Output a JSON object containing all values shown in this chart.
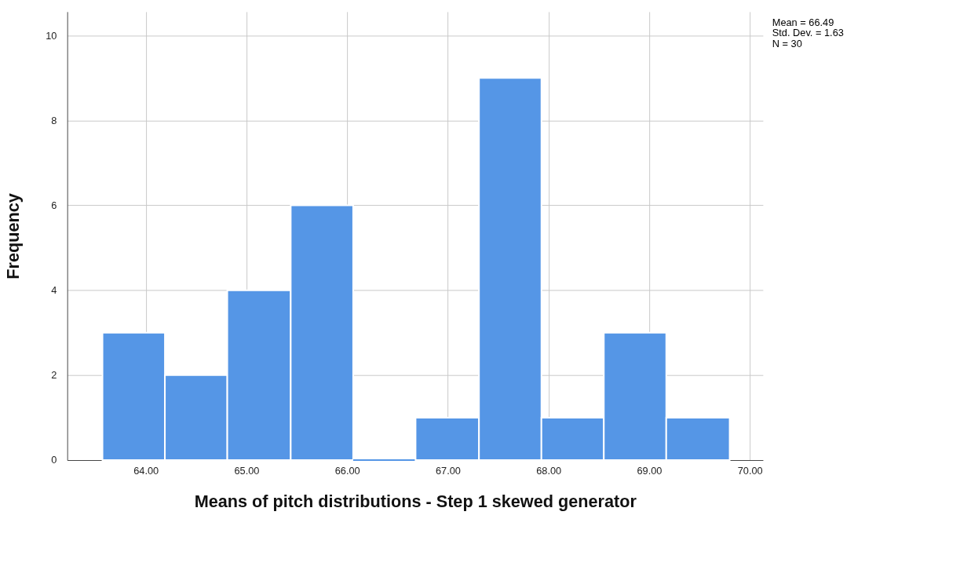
{
  "chart_data": {
    "type": "histogram",
    "xlabel": "Means of pitch distributions - Step 1 skewed generator",
    "ylabel": "Frequency",
    "bins": [
      63.57,
      64.19,
      64.81,
      65.44,
      66.06,
      66.68,
      67.31,
      67.93,
      68.55,
      69.17,
      69.8
    ],
    "values": [
      3,
      2,
      4,
      6,
      0,
      1,
      9,
      1,
      3,
      1
    ],
    "color": "#5596e6",
    "xlim": [
      63.22,
      70.13
    ],
    "xticks": [
      {
        "value": 64,
        "label": "64.00"
      },
      {
        "value": 65,
        "label": "65.00"
      },
      {
        "value": 66,
        "label": "66.00"
      },
      {
        "value": 67,
        "label": "67.00"
      },
      {
        "value": 68,
        "label": "68.00"
      },
      {
        "value": 69,
        "label": "69.00"
      },
      {
        "value": 70,
        "label": "70.00"
      }
    ],
    "ylim": [
      0,
      10.56
    ],
    "yticks": [
      0,
      2,
      4,
      6,
      8,
      10
    ],
    "grid": true,
    "annotations": [
      "Mean = 66.49",
      "Std. Dev. = 1.63",
      "N = 30"
    ]
  }
}
